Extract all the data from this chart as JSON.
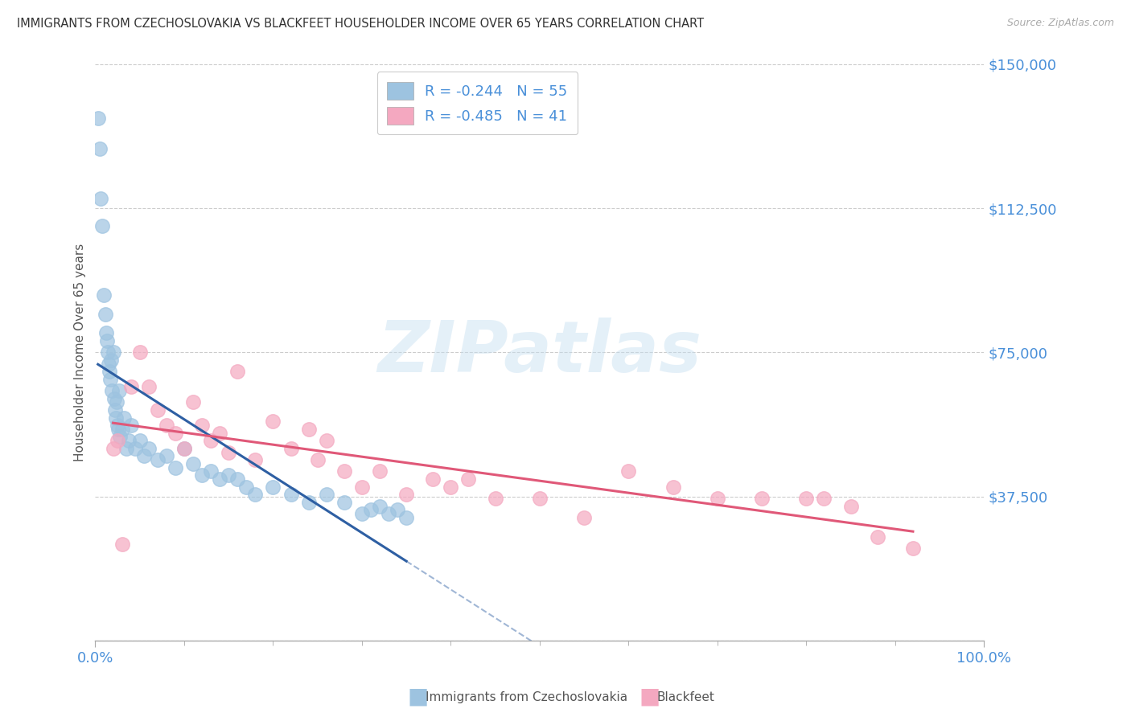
{
  "title": "IMMIGRANTS FROM CZECHOSLOVAKIA VS BLACKFEET HOUSEHOLDER INCOME OVER 65 YEARS CORRELATION CHART",
  "source": "Source: ZipAtlas.com",
  "ylabel": "Householder Income Over 65 years",
  "xlim": [
    0,
    100
  ],
  "ylim": [
    0,
    150000
  ],
  "yticks": [
    0,
    37500,
    75000,
    112500,
    150000
  ],
  "ytick_labels": [
    "",
    "$37,500",
    "$75,000",
    "$112,500",
    "$150,000"
  ],
  "xtick_labels": [
    "0.0%",
    "100.0%"
  ],
  "legend_r1": "-0.244",
  "legend_n1": "55",
  "legend_r2": "-0.485",
  "legend_n2": "41",
  "legend_label1": "Immigrants from Czechoslovakia",
  "legend_label2": "Blackfeet",
  "color_blue": "#9dc3e0",
  "color_pink": "#f4a8c0",
  "color_blue_line": "#2e5fa3",
  "color_pink_line": "#e05878",
  "tick_label_color": "#4a90d9",
  "watermark_text": "ZIPatlas",
  "blue_scatter_x": [
    0.3,
    0.5,
    0.6,
    0.8,
    1.0,
    1.1,
    1.2,
    1.3,
    1.4,
    1.5,
    1.6,
    1.7,
    1.8,
    1.9,
    2.0,
    2.1,
    2.2,
    2.3,
    2.4,
    2.5,
    2.6,
    2.7,
    2.8,
    3.0,
    3.2,
    3.5,
    3.8,
    4.0,
    4.5,
    5.0,
    5.5,
    6.0,
    7.0,
    8.0,
    9.0,
    10.0,
    11.0,
    12.0,
    13.0,
    14.0,
    15.0,
    16.0,
    17.0,
    18.0,
    20.0,
    22.0,
    24.0,
    26.0,
    28.0,
    30.0,
    31.0,
    32.0,
    33.0,
    34.0,
    35.0
  ],
  "blue_scatter_y": [
    136000,
    128000,
    115000,
    108000,
    90000,
    85000,
    80000,
    78000,
    75000,
    72000,
    70000,
    68000,
    73000,
    65000,
    75000,
    63000,
    60000,
    58000,
    62000,
    56000,
    55000,
    65000,
    53000,
    55000,
    58000,
    50000,
    52000,
    56000,
    50000,
    52000,
    48000,
    50000,
    47000,
    48000,
    45000,
    50000,
    46000,
    43000,
    44000,
    42000,
    43000,
    42000,
    40000,
    38000,
    40000,
    38000,
    36000,
    38000,
    36000,
    33000,
    34000,
    35000,
    33000,
    34000,
    32000
  ],
  "pink_scatter_x": [
    2.0,
    2.5,
    3.0,
    4.0,
    5.0,
    6.0,
    7.0,
    8.0,
    9.0,
    10.0,
    11.0,
    12.0,
    13.0,
    14.0,
    15.0,
    16.0,
    18.0,
    20.0,
    22.0,
    24.0,
    25.0,
    26.0,
    28.0,
    30.0,
    32.0,
    35.0,
    38.0,
    40.0,
    42.0,
    45.0,
    50.0,
    55.0,
    60.0,
    65.0,
    70.0,
    75.0,
    80.0,
    82.0,
    85.0,
    88.0,
    92.0
  ],
  "pink_scatter_y": [
    50000,
    52000,
    25000,
    66000,
    75000,
    66000,
    60000,
    56000,
    54000,
    50000,
    62000,
    56000,
    52000,
    54000,
    49000,
    70000,
    47000,
    57000,
    50000,
    55000,
    47000,
    52000,
    44000,
    40000,
    44000,
    38000,
    42000,
    40000,
    42000,
    37000,
    37000,
    32000,
    44000,
    40000,
    37000,
    37000,
    37000,
    37000,
    35000,
    27000,
    24000
  ]
}
